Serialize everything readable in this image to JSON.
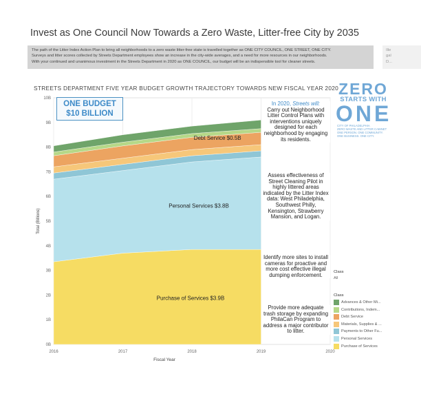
{
  "header": {
    "title": "Invest as One Council Now Towards a Zero Waste, Litter-free City by 2035",
    "info_lines": [
      "The path of the Litter Index Action Plan to bring all neighborhoods to a zero waste litter-free state is travelled together as ONE CITY COUNCIL, ONE STREET, ONE CITY.",
      "Surveys and litter scores collected by Streets Department employees show an increase in the city-wide averages, and a need for more resources in our neighborhoods.",
      "With your continued and unanimous investment in the Streets Department in 2020 as ONE COUNCIL, our budget will be an indispensible tool for cleaner streets."
    ],
    "side_lines": [
      "Ille",
      "gal",
      "D..."
    ]
  },
  "logo": {
    "line1": "ZERO",
    "line2": "STARTS WITH",
    "line3": "ONE",
    "line4": "CITY OF PHILADELPHIA",
    "line5": "ZERO WASTE AND LITTER CABINET",
    "line6": "ONE PERSON. ONE COMMUNITY.",
    "line7": "ONE BUSINESS. ONE CITY."
  },
  "budget_box": {
    "line1": "ONE BUDGET",
    "line2": "$10 BILLION"
  },
  "notes": [
    {
      "prefix": "In 2020, ",
      "highlight": "Streets will:",
      "text": "Carry out Neighborhood Litter Control Plans with interventions uniquely designed for each neighborhood by engaging its residents."
    },
    {
      "prefix": "",
      "highlight": "",
      "text": "Assess effectiveness of Street Cleaning Pilot in highly littered areas indicated by the Litter Index data: West Philadelphia, Southwest Philly, Kensington, Strawberry Mansion, and Logan."
    },
    {
      "prefix": "",
      "highlight": "",
      "text": "Identify more sites to install cameras for proactive and more cost effective illegal dumping enforcement."
    },
    {
      "prefix": "",
      "highlight": "",
      "text": "Provide more adequate trash storage by expanding PhilaCan Program to address a major contributor to litter."
    }
  ],
  "filter": {
    "title": "Class",
    "value": "All"
  },
  "colors": {
    "purchase": "#f6dc63",
    "personal": "#b6e1ec",
    "payments": "#8fc6d6",
    "materials": "#f6c77a",
    "debt": "#eca461",
    "contributions": "#b6d888",
    "advances": "#6fa46a",
    "accent": "#3d8ac8"
  },
  "chart_data": {
    "type": "area",
    "title": "STREETS DEPARTMENT FIVE YEAR BUDGET GROWTH TRAJECTORY TOWARDS NEW FISCAL YEAR 2020",
    "xlabel": "Fiscal Year",
    "ylabel": "Total (Billions)",
    "x": [
      2016,
      2017,
      2018,
      2019
    ],
    "x_ticks": [
      "2016",
      "2017",
      "2018",
      "2019",
      "2020"
    ],
    "y_ticks": [
      "0B",
      "1B",
      "2B",
      "3B",
      "4B",
      "5B",
      "6B",
      "7B",
      "8B",
      "9B",
      "10B"
    ],
    "ylim": [
      0,
      10
    ],
    "xlim": [
      2016,
      2020
    ],
    "legend_title": "Class",
    "stack_order": [
      "Purchase of Services",
      "Personal Services",
      "Payments to Other Fu...",
      "Materials, Supplies & ...",
      "Debt Service",
      "Contributions, Indem...",
      "Advances & Other Mi..."
    ],
    "series": [
      {
        "name": "Purchase of Services",
        "values": [
          3.35,
          3.7,
          3.85,
          3.85
        ],
        "label": "Purchase of Services  $3.9B"
      },
      {
        "name": "Personal Services",
        "values": [
          3.35,
          3.35,
          3.55,
          3.75
        ],
        "label": "Personal Services  $3.8B"
      },
      {
        "name": "Payments to Other Fu...",
        "values": [
          0.25,
          0.25,
          0.25,
          0.25
        ]
      },
      {
        "name": "Materials, Supplies & ...",
        "values": [
          0.25,
          0.25,
          0.25,
          0.25
        ]
      },
      {
        "name": "Debt Service",
        "values": [
          0.45,
          0.5,
          0.5,
          0.5
        ],
        "label": "Debt Service  $0.5B"
      },
      {
        "name": "Contributions, Indem...",
        "values": [
          0.15,
          0.15,
          0.15,
          0.15
        ]
      },
      {
        "name": "Advances & Other Mi...",
        "values": [
          0.25,
          0.3,
          0.3,
          0.35
        ]
      }
    ],
    "legend_order": [
      "Advances & Other Mi...",
      "Contributions, Indem...",
      "Debt Service",
      "Materials, Supplies & ...",
      "Payments to Other Fu...",
      "Personal Services",
      "Purchase of Services"
    ]
  }
}
